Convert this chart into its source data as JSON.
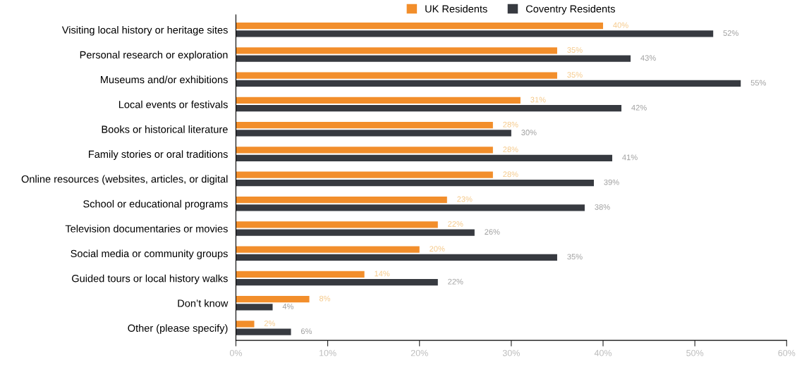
{
  "chart_data": {
    "type": "bar",
    "orientation": "horizontal",
    "categories": [
      "Visiting local history or heritage sites",
      "Personal research or exploration",
      "Museums and/or exhibitions",
      "Local events or festivals",
      "Books or historical literature",
      "Family stories or oral traditions",
      "Online resources (websites, articles, or digital",
      "School or educational programs",
      "Television documentaries or movies",
      "Social media or community groups",
      "Guided tours or local history walks",
      "Don’t know",
      "Other (please specify)"
    ],
    "series": [
      {
        "name": "UK Residents",
        "color": "#f28e2b",
        "values": [
          40,
          35,
          35,
          31,
          28,
          28,
          28,
          23,
          22,
          20,
          14,
          8,
          2
        ],
        "value_labels": [
          "40%",
          "35%",
          "35%",
          "31%",
          "28%",
          "28%",
          "28%",
          "23%",
          "22%",
          "20%",
          "14%",
          "8%",
          "2%"
        ]
      },
      {
        "name": "Coventry Residents",
        "color": "#373a40",
        "values": [
          52,
          43,
          55,
          42,
          30,
          41,
          39,
          38,
          26,
          35,
          22,
          4,
          6
        ],
        "value_labels": [
          "52%",
          "43%",
          "55%",
          "42%",
          "30%",
          "41%",
          "39%",
          "38%",
          "26%",
          "35%",
          "22%",
          "4%",
          "6%"
        ]
      }
    ],
    "xlim": [
      0,
      60
    ],
    "xticks": [
      {
        "value": 0,
        "label": "0%"
      },
      {
        "value": 10,
        "label": "10%"
      },
      {
        "value": 20,
        "label": "20%"
      },
      {
        "value": 30,
        "label": "30%"
      },
      {
        "value": 40,
        "label": "40%"
      },
      {
        "value": 50,
        "label": "50%"
      },
      {
        "value": 60,
        "label": "60%"
      }
    ],
    "legend": "top",
    "grid": false
  }
}
